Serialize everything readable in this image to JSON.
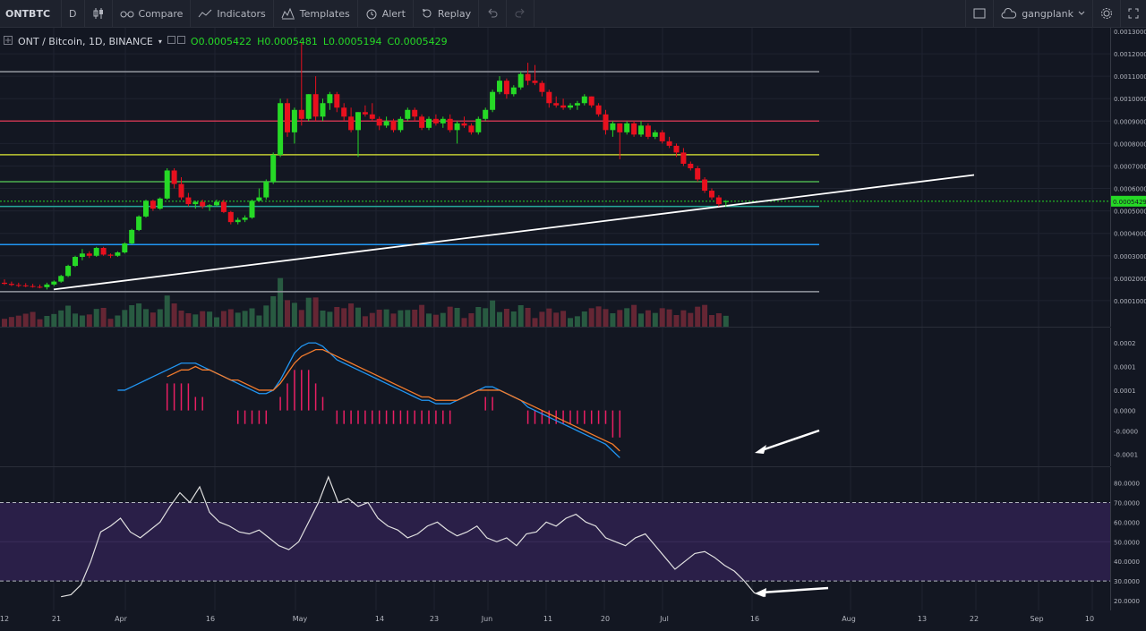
{
  "toolbar": {
    "symbol": "ONTBTC",
    "interval": "D",
    "compare": "Compare",
    "indicators": "Indicators",
    "templates": "Templates",
    "alert": "Alert",
    "replay": "Replay",
    "user": "gangplank"
  },
  "legend": {
    "title": "ONT / Bitcoin, 1D, BINANCE",
    "open": "O0.0005422",
    "high": "H0.0005481",
    "low": "L0.0005194",
    "close": "C0.0005429"
  },
  "price_axis": {
    "labels": [
      "0.0013000",
      "0.0012000",
      "0.0011000",
      "0.0010000",
      "0.0009000",
      "0.0008000",
      "0.0007000",
      "0.0006000",
      "0.0005000",
      "0.0004000",
      "0.0003000",
      "0.0002000",
      "0.0001000"
    ],
    "current": "0.0005429"
  },
  "macd_axis": {
    "labels": [
      "0.0002",
      "0.0001",
      "0.0001",
      "0.0000",
      "-0.0000",
      "-0.0001"
    ]
  },
  "rsi_axis": {
    "labels": [
      "80.0000",
      "70.0000",
      "60.0000",
      "50.0000",
      "40.0000",
      "30.0000",
      "20.0000"
    ]
  },
  "time_axis": {
    "labels": [
      "12",
      "21",
      "Apr",
      "16",
      "May",
      "14",
      "23",
      "Jun",
      "11",
      "20",
      "Jul",
      "16",
      "Aug",
      "13",
      "22",
      "Sep",
      "10"
    ]
  },
  "colors": {
    "background": "#131722",
    "up": "#26d926",
    "down": "#e8101e",
    "macd": "#2196f3",
    "signal": "#f57c2c",
    "rsi_band": "#2a1f48"
  },
  "chart_data": {
    "type": "candlestick",
    "levels": [
      {
        "value": 0.00112,
        "color": "#9598a1"
      },
      {
        "value": 0.0009,
        "color": "#c2354f"
      },
      {
        "value": 0.00075,
        "color": "#c0ca33"
      },
      {
        "value": 0.00063,
        "color": "#4caf50"
      },
      {
        "value": 0.00052,
        "color": "#26a69a"
      },
      {
        "value": 0.00035,
        "color": "#2196f3"
      },
      {
        "value": 0.00014,
        "color": "#9598a1"
      }
    ],
    "candles": [
      [
        0.00018,
        0.000195,
        0.00017,
        0.000175
      ],
      [
        0.000175,
        0.000185,
        0.000165,
        0.00017
      ],
      [
        0.00017,
        0.00018,
        0.00016,
        0.000168
      ],
      [
        0.000168,
        0.000178,
        0.00016,
        0.000165
      ],
      [
        0.000165,
        0.000175,
        0.000158,
        0.000162
      ],
      [
        0.000162,
        0.000172,
        0.000155,
        0.00016
      ],
      [
        0.00016,
        0.00018,
        0.00015,
        0.000172
      ],
      [
        0.000172,
        0.00019,
        0.000165,
        0.000185
      ],
      [
        0.000185,
        0.000215,
        0.00018,
        0.00021
      ],
      [
        0.00021,
        0.00026,
        0.000205,
        0.000255
      ],
      [
        0.000255,
        0.0003,
        0.00025,
        0.000295
      ],
      [
        0.000295,
        0.00033,
        0.00028,
        0.00031
      ],
      [
        0.00031,
        0.00032,
        0.00029,
        0.0003
      ],
      [
        0.0003,
        0.00034,
        0.000295,
        0.000335
      ],
      [
        0.000335,
        0.00034,
        0.0003,
        0.000305
      ],
      [
        0.000305,
        0.00031,
        0.00029,
        0.0003
      ],
      [
        0.0003,
        0.00032,
        0.000295,
        0.000315
      ],
      [
        0.000315,
        0.00036,
        0.00031,
        0.000355
      ],
      [
        0.000355,
        0.00042,
        0.00035,
        0.000415
      ],
      [
        0.000415,
        0.00048,
        0.00041,
        0.000475
      ],
      [
        0.000475,
        0.00055,
        0.00047,
        0.000545
      ],
      [
        0.000545,
        0.00055,
        0.0005,
        0.00051
      ],
      [
        0.00051,
        0.00056,
        0.000505,
        0.000555
      ],
      [
        0.000555,
        0.00069,
        0.00055,
        0.00068
      ],
      [
        0.00068,
        0.00069,
        0.0006,
        0.00062
      ],
      [
        0.00062,
        0.00065,
        0.00055,
        0.00056
      ],
      [
        0.00056,
        0.00058,
        0.00052,
        0.00053
      ],
      [
        0.00053,
        0.000545,
        0.00051,
        0.00054
      ],
      [
        0.00054,
        0.00055,
        0.00051,
        0.00052
      ],
      [
        0.00052,
        0.00053,
        0.0005,
        0.000525
      ],
      [
        0.000525,
        0.00055,
        0.00052,
        0.00054
      ],
      [
        0.00054,
        0.00055,
        0.00049,
        0.000495
      ],
      [
        0.000495,
        0.0005,
        0.00044,
        0.00045
      ],
      [
        0.00045,
        0.00047,
        0.00044,
        0.00046
      ],
      [
        0.00046,
        0.00048,
        0.00045,
        0.00047
      ],
      [
        0.00047,
        0.00055,
        0.000465,
        0.000545
      ],
      [
        0.000545,
        0.0006,
        0.00054,
        0.00056
      ],
      [
        0.00056,
        0.00064,
        0.00055,
        0.00063
      ],
      [
        0.00063,
        0.00076,
        0.00062,
        0.00075
      ],
      [
        0.00075,
        0.001,
        0.00074,
        0.00098
      ],
      [
        0.00098,
        0.001,
        0.00083,
        0.00085
      ],
      [
        0.00085,
        0.00096,
        0.0008,
        0.00095
      ],
      [
        0.00095,
        0.00125,
        0.00088,
        0.00091
      ],
      [
        0.00091,
        0.00102,
        0.0009,
        0.00102
      ],
      [
        0.00102,
        0.0011,
        0.0009,
        0.00092
      ],
      [
        0.00092,
        0.001,
        0.0009,
        0.00098
      ],
      [
        0.00098,
        0.00103,
        0.00095,
        0.00102
      ],
      [
        0.00102,
        0.00103,
        0.00094,
        0.00096
      ],
      [
        0.00096,
        0.00098,
        0.0009,
        0.00092
      ],
      [
        0.00092,
        0.00096,
        0.00085,
        0.00086
      ],
      [
        0.00086,
        0.00094,
        0.00074,
        0.00094
      ],
      [
        0.00094,
        0.00097,
        0.00092,
        0.00093
      ],
      [
        0.00093,
        0.00098,
        0.0009,
        0.00091
      ],
      [
        0.00091,
        0.00092,
        0.00086,
        0.00088
      ],
      [
        0.00088,
        0.00092,
        0.00087,
        0.0009
      ],
      [
        0.0009,
        0.00091,
        0.00085,
        0.00086
      ],
      [
        0.00086,
        0.00092,
        0.00085,
        0.00091
      ],
      [
        0.00091,
        0.00096,
        0.0009,
        0.00095
      ],
      [
        0.00095,
        0.00096,
        0.0009,
        0.00092
      ],
      [
        0.00092,
        0.00093,
        0.00086,
        0.00087
      ],
      [
        0.00087,
        0.00092,
        0.00086,
        0.00091
      ],
      [
        0.00091,
        0.00093,
        0.00088,
        0.00089
      ],
      [
        0.00089,
        0.00092,
        0.00087,
        0.00091
      ],
      [
        0.00091,
        0.00093,
        0.00085,
        0.00086
      ],
      [
        0.00086,
        0.0009,
        0.0008,
        0.00089
      ],
      [
        0.00089,
        0.00092,
        0.00087,
        0.00088
      ],
      [
        0.00088,
        0.00089,
        0.00084,
        0.00085
      ],
      [
        0.00085,
        0.00092,
        0.00084,
        0.00091
      ],
      [
        0.00091,
        0.00096,
        0.0009,
        0.00095
      ],
      [
        0.00095,
        0.00104,
        0.00094,
        0.00103
      ],
      [
        0.00103,
        0.0011,
        0.00102,
        0.00108
      ],
      [
        0.00108,
        0.00109,
        0.001,
        0.00102
      ],
      [
        0.00102,
        0.00106,
        0.00101,
        0.00105
      ],
      [
        0.00105,
        0.00112,
        0.00104,
        0.00111
      ],
      [
        0.00111,
        0.00116,
        0.00106,
        0.00108
      ],
      [
        0.00108,
        0.00115,
        0.00106,
        0.00107
      ],
      [
        0.00107,
        0.00108,
        0.00101,
        0.00103
      ],
      [
        0.00103,
        0.00104,
        0.00096,
        0.00098
      ],
      [
        0.00098,
        0.00101,
        0.00096,
        0.00097
      ],
      [
        0.00097,
        0.001,
        0.00095,
        0.00096
      ],
      [
        0.00096,
        0.00098,
        0.00095,
        0.00097
      ],
      [
        0.00097,
        0.00099,
        0.00095,
        0.00098
      ],
      [
        0.00098,
        0.00102,
        0.00097,
        0.00101
      ],
      [
        0.00101,
        0.00101,
        0.00096,
        0.00097
      ],
      [
        0.00097,
        0.00098,
        0.00092,
        0.00093
      ],
      [
        0.00093,
        0.00095,
        0.00084,
        0.00086
      ],
      [
        0.00086,
        0.0009,
        0.00083,
        0.00089
      ],
      [
        0.00089,
        0.00089,
        0.00073,
        0.00085
      ],
      [
        0.00085,
        0.0009,
        0.00084,
        0.00089
      ],
      [
        0.00089,
        0.0009,
        0.00083,
        0.00084
      ],
      [
        0.00084,
        0.0009,
        0.00083,
        0.00088
      ],
      [
        0.00088,
        0.00089,
        0.00082,
        0.00083
      ],
      [
        0.00083,
        0.00086,
        0.00082,
        0.00085
      ],
      [
        0.00085,
        0.00086,
        0.0008,
        0.00081
      ],
      [
        0.00081,
        0.00083,
        0.00078,
        0.00079
      ],
      [
        0.00079,
        0.0008,
        0.00074,
        0.00076
      ],
      [
        0.00076,
        0.00078,
        0.0007,
        0.00071
      ],
      [
        0.00071,
        0.00072,
        0.00068,
        0.00069
      ],
      [
        0.00069,
        0.0007,
        0.00063,
        0.00064
      ],
      [
        0.00064,
        0.00065,
        0.00058,
        0.00059
      ],
      [
        0.00059,
        0.0006,
        0.00055,
        0.00056
      ],
      [
        0.00056,
        0.00057,
        0.00052,
        0.00053
      ],
      [
        0.000542,
        0.000548,
        0.000519,
        0.000543
      ]
    ],
    "macd": [
      6e-05,
      6e-05,
      7e-05,
      8e-05,
      9e-05,
      0.0001,
      0.00011,
      0.00012,
      0.00013,
      0.00014,
      0.00014,
      0.00014,
      0.00013,
      0.00012,
      0.00011,
      0.0001,
      9e-05,
      8e-05,
      7e-05,
      6e-05,
      5e-05,
      5e-05,
      6e-05,
      9e-05,
      0.00013,
      0.00017,
      0.00019,
      0.0002,
      0.0002,
      0.00019,
      0.00017,
      0.00015,
      0.00014,
      0.00013,
      0.00012,
      0.00011,
      0.0001,
      9e-05,
      8e-05,
      7e-05,
      6e-05,
      5e-05,
      4e-05,
      3e-05,
      3e-05,
      2e-05,
      2e-05,
      2e-05,
      3e-05,
      4e-05,
      5e-05,
      6e-05,
      7e-05,
      7e-05,
      6e-05,
      5e-05,
      4e-05,
      3e-05,
      1e-05,
      0.0,
      -1e-05,
      -2e-05,
      -3e-05,
      -4e-05,
      -5e-05,
      -6e-05,
      -7e-05,
      -8e-05,
      -9e-05,
      -0.0001,
      -0.00012,
      -0.00014
    ],
    "signal": [
      null,
      null,
      null,
      null,
      null,
      null,
      null,
      0.0001,
      0.00011,
      0.00012,
      0.00012,
      0.00013,
      0.00012,
      0.00012,
      0.00011,
      0.0001,
      9e-05,
      9e-05,
      8e-05,
      7e-05,
      6e-05,
      6e-05,
      6e-05,
      8e-05,
      0.00011,
      0.00014,
      0.00016,
      0.00017,
      0.00018,
      0.00018,
      0.00017,
      0.00016,
      0.00015,
      0.00014,
      0.00013,
      0.00012,
      0.00011,
      0.0001,
      9e-05,
      8e-05,
      7e-05,
      6e-05,
      5e-05,
      4e-05,
      4e-05,
      3e-05,
      3e-05,
      3e-05,
      3e-05,
      4e-05,
      5e-05,
      6e-05,
      6e-05,
      6e-05,
      6e-05,
      5e-05,
      4e-05,
      3e-05,
      2e-05,
      1e-05,
      0.0,
      -1e-05,
      -2e-05,
      -3e-05,
      -4e-05,
      -5e-05,
      -6e-05,
      -7e-05,
      -8e-05,
      -9e-05,
      -0.0001,
      -0.00012
    ],
    "rsi": [
      22,
      23,
      28,
      40,
      55,
      58,
      62,
      55,
      52,
      56,
      60,
      68,
      75,
      70,
      78,
      65,
      60,
      58,
      55,
      54,
      56,
      52,
      48,
      46,
      50,
      60,
      70,
      83,
      70,
      72,
      68,
      70,
      62,
      58,
      56,
      52,
      54,
      58,
      60,
      56,
      53,
      55,
      58,
      52,
      50,
      52,
      48,
      54,
      55,
      60,
      58,
      62,
      64,
      60,
      58,
      52,
      50,
      48,
      52,
      54,
      48,
      42,
      36,
      40,
      44,
      45,
      42,
      38,
      35,
      30,
      24,
      22
    ]
  }
}
